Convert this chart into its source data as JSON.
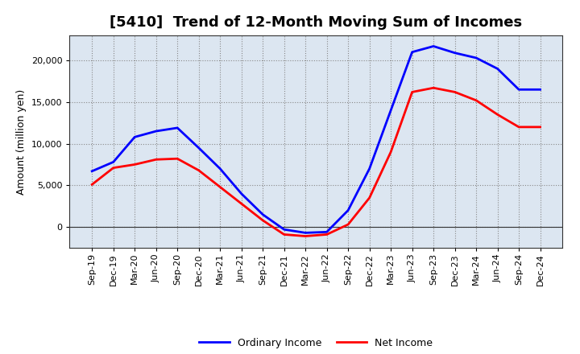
{
  "title": "[5410]  Trend of 12-Month Moving Sum of Incomes",
  "ylabel": "Amount (million yen)",
  "x_labels": [
    "Sep-19",
    "Dec-19",
    "Mar-20",
    "Jun-20",
    "Sep-20",
    "Dec-20",
    "Mar-21",
    "Jun-21",
    "Sep-21",
    "Dec-21",
    "Mar-22",
    "Jun-22",
    "Sep-22",
    "Dec-22",
    "Mar-23",
    "Jun-23",
    "Sep-23",
    "Dec-23",
    "Mar-24",
    "Jun-24",
    "Sep-24",
    "Dec-24"
  ],
  "ordinary_income": [
    6700,
    7800,
    10800,
    11500,
    11900,
    9500,
    7000,
    4000,
    1500,
    -300,
    -700,
    -600,
    2000,
    7000,
    14000,
    21000,
    21700,
    20900,
    20300,
    19000,
    16500,
    16500
  ],
  "net_income": [
    5100,
    7100,
    7500,
    8100,
    8200,
    6800,
    4800,
    2800,
    800,
    -900,
    -1100,
    -900,
    300,
    3500,
    9000,
    16200,
    16700,
    16200,
    15200,
    13500,
    12000,
    12000
  ],
  "ordinary_color": "#0000ff",
  "net_color": "#ff0000",
  "ylim_min": -2500,
  "ylim_max": 23000,
  "yticks": [
    0,
    5000,
    10000,
    15000,
    20000
  ],
  "plot_bg_color": "#dce6f1",
  "fig_bg_color": "#ffffff",
  "grid_color": "#888888",
  "title_fontsize": 13,
  "axis_fontsize": 9,
  "tick_fontsize": 8,
  "legend_fontsize": 9,
  "line_width": 2.0
}
